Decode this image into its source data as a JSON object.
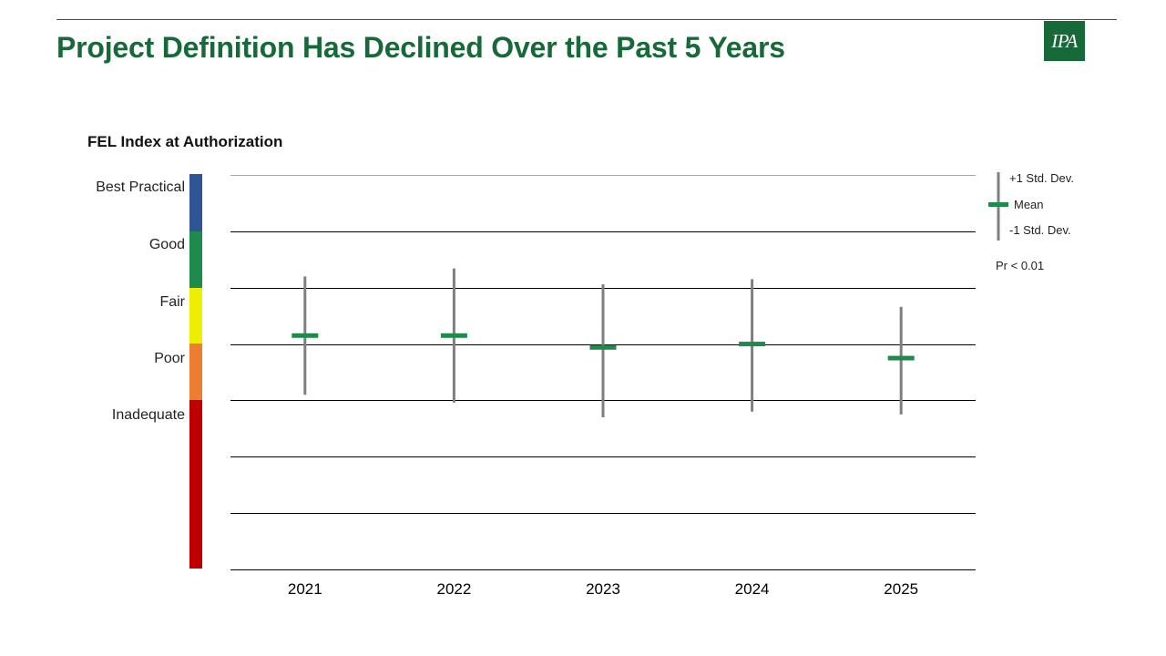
{
  "header": {
    "title": "Project Definition Has Declined Over the Past 5 Years",
    "logo_text": "IPA"
  },
  "rating_scale": {
    "bands": [
      {
        "label": "Best Practical",
        "color": "#2f5597"
      },
      {
        "label": "Good",
        "color": "#1e8a4c"
      },
      {
        "label": "Fair",
        "color": "#eeee00"
      },
      {
        "label": "Poor",
        "color": "#ed7d31"
      },
      {
        "label": "Inadequate",
        "color": "#c00000"
      }
    ]
  },
  "legend": {
    "plus_sd": "+1 Std. Dev.",
    "mean": "Mean",
    "minus_sd": "-1 Std. Dev.",
    "significance": "Pr < 0.01",
    "mean_color": "#1e8a4c",
    "range_color": "#7f7f7f"
  },
  "chart_data": {
    "type": "error-bar",
    "title": "FEL Index at Authorization",
    "categories": [
      "2021",
      "2022",
      "2023",
      "2024",
      "2025"
    ],
    "y_axis": "gridline levels 0 (top, Best Practical boundary) to 7 (bottom); no numeric tick labels shown",
    "ylim": [
      0,
      7
    ],
    "series": [
      {
        "name": "Mean",
        "values": [
          2.85,
          2.85,
          3.06,
          3.0,
          3.25
        ]
      },
      {
        "name": "+1 Std. Dev.",
        "values": [
          1.8,
          1.66,
          1.94,
          1.85,
          2.34
        ]
      },
      {
        "name": "-1 Std. Dev.",
        "values": [
          3.9,
          4.04,
          4.3,
          4.2,
          4.25
        ]
      }
    ]
  }
}
